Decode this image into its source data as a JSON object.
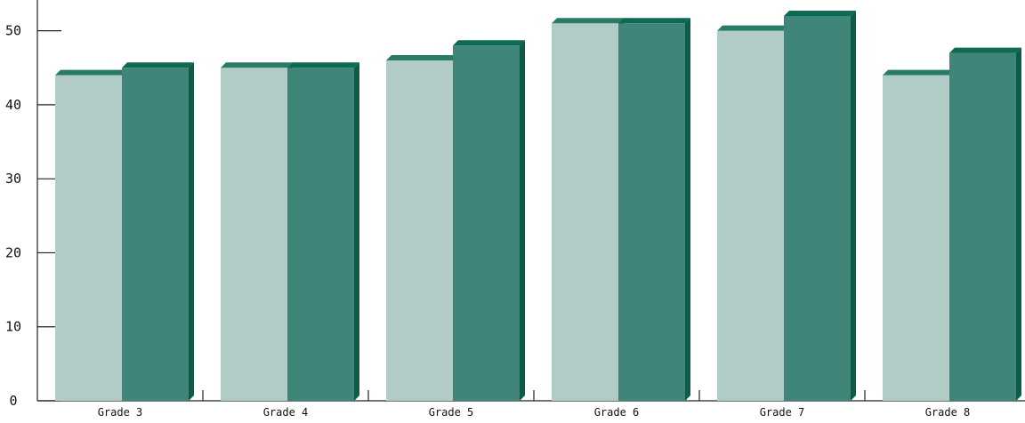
{
  "chart_data": {
    "type": "bar",
    "style": "3d-grouped-bar",
    "categories": [
      "Grade 3",
      "Grade 4",
      "Grade 5",
      "Grade 6",
      "Grade 7",
      "Grade 8"
    ],
    "series": [
      {
        "color": "#b1cbc6",
        "top_color": "#2a7a68",
        "values": [
          44,
          45,
          46,
          51,
          50,
          44
        ]
      },
      {
        "color": "#40857a",
        "top_color": "#0e6a52",
        "values": [
          45,
          45,
          48,
          51,
          52,
          47
        ]
      }
    ],
    "ylim": [
      0,
      55
    ],
    "yticks": [
      0,
      10,
      20,
      30,
      40,
      50
    ],
    "xlabel": "",
    "ylabel": "",
    "title": "",
    "grid": false,
    "legend": "none"
  }
}
